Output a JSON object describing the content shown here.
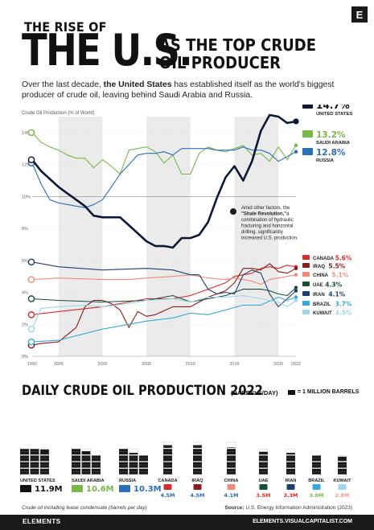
{
  "header": {
    "title_small": "THE RISE OF",
    "title_big": "THE U.S.",
    "title_right_1": "AS THE TOP CRUDE",
    "title_right_2": "OIL PRODUCER",
    "intro_1": "Over the last decade, ",
    "intro_bold": "the United States",
    "intro_2": " has established itself as the world's biggest producer of crude oil, leaving behind Saudi Arabia and Russia.",
    "logo": "E"
  },
  "chart_data": [
    {
      "type": "line",
      "ylabel": "Crude Oil Production (% of World)",
      "y_ticks": [
        "0%",
        "2%",
        "4%",
        "6%",
        "8%",
        "10%",
        "12%",
        "14%"
      ],
      "ylim": [
        0,
        15
      ],
      "x_ticks": [
        "1992",
        "1995",
        "2000",
        "2005",
        "2010",
        "2015",
        "2020",
        "2022"
      ],
      "xlim": [
        1992,
        2022
      ],
      "shaded_bands": [
        [
          1995,
          2000
        ],
        [
          2005,
          2010
        ],
        [
          2015,
          2020
        ]
      ],
      "reference_line": 10,
      "annotation": "Amid other factors, the \"Shale Revolution,\" a combination of hydraulic fracturing and horizontal drilling, significantly increased U.S. production.",
      "annotation_emphasis": "\"Shale Revolution,\"",
      "series": [
        {
          "name": "UNITED STATES",
          "end_label": "14.7%",
          "color": "#0d1836",
          "emphasis": true,
          "x": [
            1992,
            1993,
            1994,
            1995,
            1996,
            1997,
            1998,
            1999,
            2000,
            2001,
            2002,
            2003,
            2004,
            2005,
            2006,
            2007,
            2008,
            2009,
            2010,
            2011,
            2012,
            2013,
            2014,
            2015,
            2016,
            2017,
            2018,
            2019,
            2020,
            2021,
            2022
          ],
          "y": [
            12.3,
            11.6,
            11.1,
            10.6,
            10.2,
            9.8,
            9.4,
            8.8,
            8.7,
            8.7,
            8.7,
            8.2,
            7.7,
            7.2,
            6.9,
            6.9,
            6.8,
            7.4,
            7.4,
            7.6,
            8.4,
            9.9,
            11.2,
            11.9,
            11.0,
            12.2,
            14.1,
            15.1,
            15.0,
            14.6,
            14.7
          ]
        },
        {
          "name": "SAUDI ARABIA",
          "end_label": "13.2%",
          "color": "#7ab648",
          "x": [
            1992,
            1993,
            1994,
            1995,
            1996,
            1997,
            1998,
            1999,
            2000,
            2001,
            2002,
            2003,
            2004,
            2005,
            2006,
            2007,
            2008,
            2009,
            2010,
            2011,
            2012,
            2013,
            2014,
            2015,
            2016,
            2017,
            2018,
            2019,
            2020,
            2021,
            2022
          ],
          "y": [
            14.0,
            13.4,
            13.1,
            12.9,
            12.6,
            12.4,
            12.4,
            11.8,
            12.3,
            11.9,
            11.4,
            12.9,
            13.0,
            13.1,
            12.8,
            12.1,
            12.6,
            11.4,
            11.4,
            12.7,
            13.1,
            12.9,
            12.8,
            13.0,
            13.2,
            12.6,
            12.7,
            12.2,
            13.1,
            12.3,
            13.2
          ]
        },
        {
          "name": "RUSSIA",
          "end_label": "12.8%",
          "color": "#2c6fb5",
          "x": [
            1992,
            1993,
            1994,
            1995,
            1996,
            1997,
            1998,
            1999,
            2000,
            2001,
            2002,
            2003,
            2004,
            2005,
            2006,
            2007,
            2008,
            2009,
            2010,
            2011,
            2012,
            2013,
            2014,
            2015,
            2016,
            2017,
            2018,
            2019,
            2020,
            2021,
            2022
          ],
          "y": [
            12.1,
            10.8,
            9.8,
            9.6,
            9.5,
            9.4,
            9.3,
            9.5,
            9.8,
            10.6,
            11.4,
            12.0,
            12.6,
            12.7,
            12.7,
            12.8,
            12.6,
            13.0,
            13.0,
            13.0,
            13.0,
            12.9,
            12.9,
            12.9,
            13.1,
            12.9,
            12.9,
            12.7,
            12.2,
            12.5,
            12.8
          ]
        },
        {
          "name": "CANADA",
          "end_label": "5.6%",
          "color": "#d62c2c",
          "x": [
            1992,
            1995,
            2000,
            2005,
            2008,
            2010,
            2012,
            2014,
            2015,
            2016,
            2017,
            2018,
            2019,
            2020,
            2021,
            2022
          ],
          "y": [
            2.6,
            2.8,
            3.1,
            3.6,
            3.6,
            3.8,
            4.2,
            4.6,
            5.0,
            5.1,
            5.2,
            5.5,
            5.6,
            5.5,
            5.7,
            5.6
          ]
        },
        {
          "name": "IRAQ",
          "end_label": "5.5%",
          "color": "#8b1a1a",
          "x": [
            1992,
            1993,
            1995,
            1997,
            1998,
            1999,
            2000,
            2001,
            2002,
            2003,
            2004,
            2005,
            2006,
            2008,
            2010,
            2012,
            2014,
            2015,
            2016,
            2017,
            2018,
            2019,
            2020,
            2021,
            2022
          ],
          "y": [
            0.7,
            0.8,
            0.9,
            1.8,
            3.1,
            3.5,
            3.5,
            3.3,
            2.9,
            1.8,
            2.8,
            2.5,
            2.6,
            3.1,
            3.1,
            3.7,
            4.1,
            4.6,
            5.5,
            5.5,
            5.4,
            5.8,
            5.3,
            5.2,
            5.5
          ]
        },
        {
          "name": "CHINA",
          "end_label": "5.1%",
          "color": "#f08a7c",
          "x": [
            1992,
            1995,
            2000,
            2003,
            2005,
            2008,
            2010,
            2012,
            2014,
            2015,
            2016,
            2017,
            2018,
            2019,
            2020,
            2021,
            2022
          ],
          "y": [
            4.8,
            4.9,
            4.8,
            4.8,
            4.9,
            5.0,
            5.1,
            4.9,
            4.8,
            4.9,
            4.8,
            4.7,
            4.5,
            4.8,
            4.9,
            5.0,
            5.1
          ]
        },
        {
          "name": "UAE",
          "end_label": "4.3%",
          "color": "#184e3a",
          "x": [
            1992,
            1995,
            2000,
            2005,
            2008,
            2010,
            2012,
            2014,
            2016,
            2018,
            2019,
            2020,
            2021,
            2022
          ],
          "y": [
            3.6,
            3.5,
            3.4,
            3.5,
            3.8,
            3.4,
            3.6,
            3.8,
            4.2,
            4.2,
            4.1,
            3.9,
            3.8,
            4.3
          ]
        },
        {
          "name": "IRAN",
          "end_label": "4.1%",
          "color": "#1f3f6e",
          "x": [
            1992,
            1995,
            2000,
            2005,
            2008,
            2010,
            2011,
            2012,
            2013,
            2014,
            2015,
            2016,
            2017,
            2018,
            2019,
            2020,
            2021,
            2022
          ],
          "y": [
            5.9,
            5.6,
            5.4,
            5.5,
            5.4,
            5.1,
            5.1,
            4.2,
            3.9,
            4.0,
            3.9,
            5.1,
            5.4,
            5.2,
            3.9,
            3.1,
            3.6,
            4.1
          ]
        },
        {
          "name": "BRAZIL",
          "end_label": "3.7%",
          "color": "#3aa8d8",
          "x": [
            1992,
            1995,
            2000,
            2005,
            2008,
            2010,
            2012,
            2014,
            2016,
            2018,
            2020,
            2021,
            2022
          ],
          "y": [
            0.9,
            1.0,
            1.7,
            2.2,
            2.4,
            2.7,
            2.6,
            2.9,
            3.2,
            3.2,
            3.7,
            3.5,
            3.7
          ]
        },
        {
          "name": "KUWAIT",
          "end_label": "3.5%",
          "color": "#9ed4ec",
          "x": [
            1992,
            1993,
            1995,
            1998,
            2000,
            2003,
            2005,
            2008,
            2010,
            2012,
            2014,
            2016,
            2018,
            2020,
            2021,
            2022
          ],
          "y": [
            1.7,
            3.0,
            3.1,
            3.2,
            3.1,
            3.3,
            3.5,
            3.6,
            3.4,
            3.7,
            3.7,
            3.8,
            3.6,
            3.4,
            3.1,
            3.5
          ]
        }
      ]
    },
    {
      "type": "bar",
      "title": "DAILY CRUDE OIL PRODUCTION 2022",
      "unit": "(BARRELS/DAY)",
      "legend": "= 1 MILLION BARRELS",
      "categories": [
        "UNITED STATES",
        "SAUDI ARABIA",
        "RUSSIA",
        "CANADA",
        "IRAQ",
        "CHINA",
        "UAE",
        "IRAN",
        "BRAZIL",
        "KUWAIT"
      ],
      "value_labels": [
        "11.9M",
        "10.6M",
        "10.3M",
        "4.5M",
        "4.5M",
        "4.1M",
        "3.5M",
        "3.3M",
        "3.0M",
        "2.8M"
      ],
      "values": [
        11.9,
        10.6,
        10.3,
        4.5,
        4.5,
        4.1,
        3.5,
        3.3,
        3.0,
        2.8
      ],
      "label_colors": [
        "#111111",
        "#7ab648",
        "#2c6fb5",
        "#d62c2c",
        "#8b1a1a",
        "#f08a7c",
        "#184e3a",
        "#1f3f6e",
        "#3aa8d8",
        "#9ed4ec"
      ],
      "number_colors": [
        "#111111",
        "#7ab648",
        "#2c6fb5",
        "#2c6fb5",
        "#2c6fb5",
        "#2c6fb5",
        "#d62c2c",
        "#d62c2c",
        "#7ab648",
        "#f0a090"
      ]
    }
  ],
  "footer": {
    "note": "Crude oil including lease condensate (barrels per day)",
    "source_label": "Source:",
    "source": " U.S. Energy Information Administration (2023)",
    "logo": "ELEMENTS",
    "site": "ELEMENTS.VISUALCAPITALIST.COM"
  }
}
